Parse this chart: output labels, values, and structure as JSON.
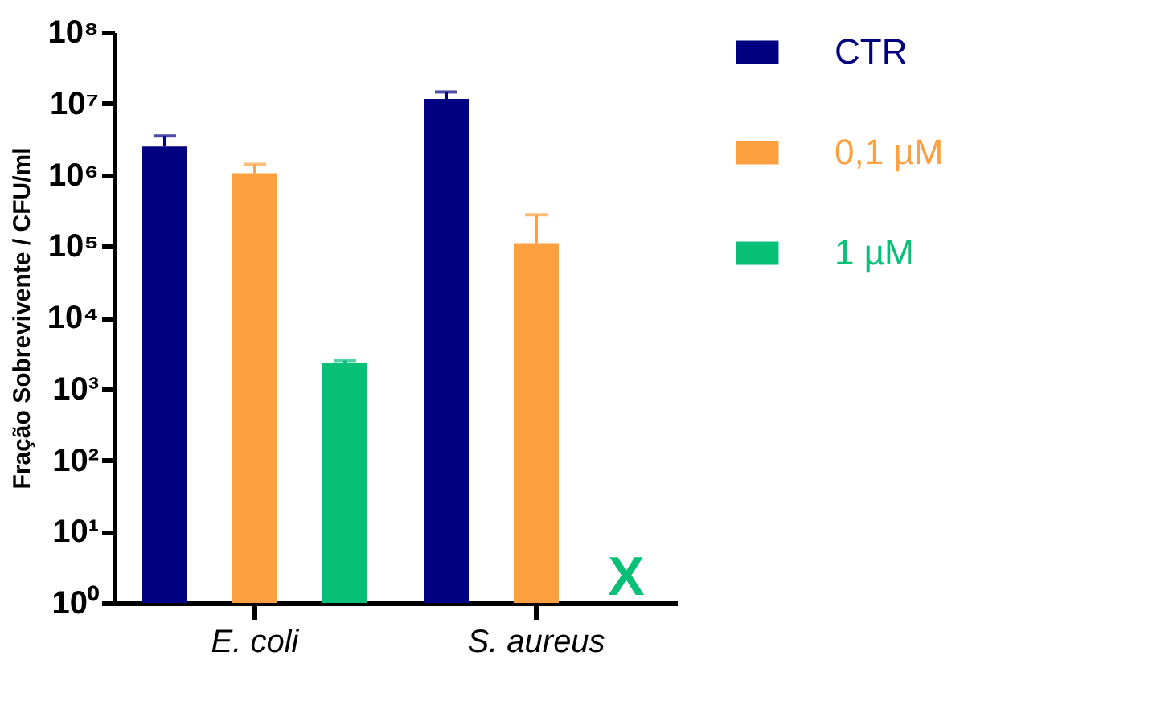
{
  "chart_data": {
    "type": "bar",
    "ylabel": "Fração Sobrevivente / CFU/ml",
    "categories": [
      "E. coli",
      "S. aureus"
    ],
    "series": [
      {
        "name": "CTR",
        "color": "#000080",
        "values": [
          2500000,
          11600000
        ],
        "errors": [
          [
            2500000,
            3500000
          ],
          [
            11600000,
            14500000
          ]
        ]
      },
      {
        "name": "0,1 µM",
        "color": "#ffa040",
        "values": [
          1050000,
          110000
        ],
        "errors": [
          [
            1050000,
            1400000
          ],
          [
            110000,
            275000
          ]
        ]
      },
      {
        "name": "1 µM",
        "color": "#08bf78",
        "values": [
          2300,
          null
        ],
        "errors": [
          [
            2300,
            2500
          ],
          null
        ]
      }
    ],
    "annotations": [
      {
        "text": "X",
        "x": "S. aureus",
        "y": 1
      }
    ],
    "log": true,
    "ylim": [
      1,
      100000000
    ],
    "yticks": [
      {
        "value": 1,
        "label": "10⁰"
      },
      {
        "value": 10,
        "label": "10¹"
      },
      {
        "value": 100,
        "label": "10²"
      },
      {
        "value": 1000,
        "label": "10³"
      },
      {
        "value": 10000,
        "label": "10⁴"
      },
      {
        "value": 100000,
        "label": "10⁵"
      },
      {
        "value": 1000000,
        "label": "10⁶"
      },
      {
        "value": 10000000,
        "label": "10⁷"
      },
      {
        "value": 100000000,
        "label": "10⁸"
      }
    ],
    "grid": false,
    "legend": "top right"
  }
}
